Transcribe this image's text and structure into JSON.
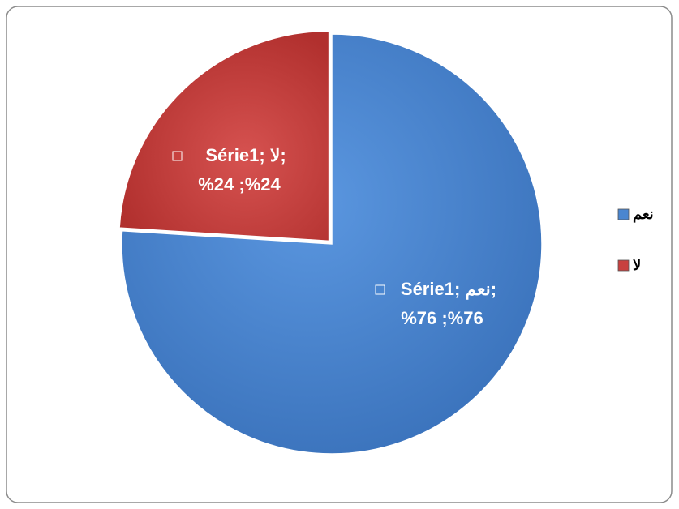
{
  "chart_data": {
    "type": "pie",
    "series_name": "Série1",
    "categories": [
      "نعم",
      "لا"
    ],
    "values": [
      76,
      24
    ],
    "colors": [
      "#4a86d0",
      "#c8413f"
    ],
    "data_labels": [
      [
        "Série1; نعم;",
        "%76 ;%76"
      ],
      [
        "Série1; لا;",
        "%24 ;%24"
      ]
    ],
    "legend": "right"
  }
}
